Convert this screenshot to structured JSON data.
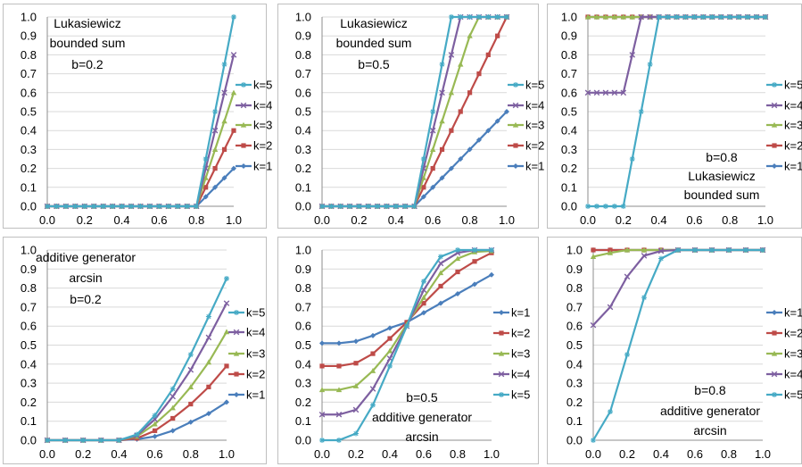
{
  "colors": {
    "k1": "#4a7ebb",
    "k2": "#be4b48",
    "k3": "#98b954",
    "k4": "#7d5fa0",
    "k5": "#46aac5"
  },
  "chart_data": [
    {
      "type": "line",
      "annotation": [
        "Lukasiewicz",
        "bounded sum",
        "b=0.2"
      ],
      "xlim": [
        0,
        1
      ],
      "ylim": [
        0,
        1
      ],
      "xticks": [
        "0.0",
        "0.2",
        "0.4",
        "0.6",
        "0.8",
        "1.0"
      ],
      "yticks": [
        "0.0",
        "0.1",
        "0.2",
        "0.3",
        "0.4",
        "0.5",
        "0.6",
        "0.7",
        "0.8",
        "0.9",
        "1.0"
      ],
      "x": [
        0,
        0.05,
        0.1,
        0.15,
        0.2,
        0.25,
        0.3,
        0.35,
        0.4,
        0.45,
        0.5,
        0.55,
        0.6,
        0.65,
        0.7,
        0.75,
        0.8,
        0.85,
        0.9,
        0.95,
        1.0
      ],
      "legend_order": [
        5,
        4,
        3,
        2,
        1
      ],
      "series": [
        {
          "name": "k=1",
          "key": "k1",
          "values": [
            0,
            0,
            0,
            0,
            0,
            0,
            0,
            0,
            0,
            0,
            0,
            0,
            0,
            0,
            0,
            0,
            0,
            0.05,
            0.1,
            0.15,
            0.2
          ]
        },
        {
          "name": "k=2",
          "key": "k2",
          "values": [
            0,
            0,
            0,
            0,
            0,
            0,
            0,
            0,
            0,
            0,
            0,
            0,
            0,
            0,
            0,
            0,
            0,
            0.1,
            0.2,
            0.3,
            0.4
          ]
        },
        {
          "name": "k=3",
          "key": "k3",
          "values": [
            0,
            0,
            0,
            0,
            0,
            0,
            0,
            0,
            0,
            0,
            0,
            0,
            0,
            0,
            0,
            0,
            0,
            0.15,
            0.3,
            0.45,
            0.6
          ]
        },
        {
          "name": "k=4",
          "key": "k4",
          "values": [
            0,
            0,
            0,
            0,
            0,
            0,
            0,
            0,
            0,
            0,
            0,
            0,
            0,
            0,
            0,
            0,
            0,
            0.2,
            0.4,
            0.6,
            0.8
          ]
        },
        {
          "name": "k=5",
          "key": "k5",
          "values": [
            0,
            0,
            0,
            0,
            0,
            0,
            0,
            0,
            0,
            0,
            0,
            0,
            0,
            0,
            0,
            0,
            0,
            0.25,
            0.5,
            0.75,
            1.0
          ]
        }
      ]
    },
    {
      "type": "line",
      "annotation": [
        "Lukasiewicz",
        "bounded sum",
        "b=0.5"
      ],
      "xlim": [
        0,
        1
      ],
      "ylim": [
        0,
        1
      ],
      "xticks": [
        "0.0",
        "0.2",
        "0.4",
        "0.6",
        "0.8",
        "1.0"
      ],
      "yticks": [
        "0.0",
        "0.1",
        "0.2",
        "0.3",
        "0.4",
        "0.5",
        "0.6",
        "0.7",
        "0.8",
        "0.9",
        "1.0"
      ],
      "x": [
        0,
        0.05,
        0.1,
        0.15,
        0.2,
        0.25,
        0.3,
        0.35,
        0.4,
        0.45,
        0.5,
        0.55,
        0.6,
        0.65,
        0.7,
        0.75,
        0.8,
        0.85,
        0.9,
        0.95,
        1.0
      ],
      "legend_order": [
        5,
        4,
        3,
        2,
        1
      ],
      "series": [
        {
          "name": "k=1",
          "key": "k1",
          "values": [
            0,
            0,
            0,
            0,
            0,
            0,
            0,
            0,
            0,
            0,
            0,
            0.05,
            0.1,
            0.15,
            0.2,
            0.25,
            0.3,
            0.35,
            0.4,
            0.45,
            0.5
          ]
        },
        {
          "name": "k=2",
          "key": "k2",
          "values": [
            0,
            0,
            0,
            0,
            0,
            0,
            0,
            0,
            0,
            0,
            0,
            0.1,
            0.2,
            0.3,
            0.4,
            0.5,
            0.6,
            0.7,
            0.8,
            0.9,
            1.0
          ]
        },
        {
          "name": "k=3",
          "key": "k3",
          "values": [
            0,
            0,
            0,
            0,
            0,
            0,
            0,
            0,
            0,
            0,
            0,
            0.15,
            0.3,
            0.45,
            0.6,
            0.75,
            0.9,
            1.0,
            1.0,
            1.0,
            1.0
          ]
        },
        {
          "name": "k=4",
          "key": "k4",
          "values": [
            0,
            0,
            0,
            0,
            0,
            0,
            0,
            0,
            0,
            0,
            0,
            0.2,
            0.4,
            0.6,
            0.8,
            1.0,
            1.0,
            1.0,
            1.0,
            1.0,
            1.0
          ]
        },
        {
          "name": "k=5",
          "key": "k5",
          "values": [
            0,
            0,
            0,
            0,
            0,
            0,
            0,
            0,
            0,
            0,
            0,
            0.25,
            0.5,
            0.75,
            1.0,
            1.0,
            1.0,
            1.0,
            1.0,
            1.0,
            1.0
          ]
        }
      ]
    },
    {
      "type": "line",
      "annotation": [
        "b=0.8",
        "Lukasiewicz",
        "bounded sum"
      ],
      "xlim": [
        0,
        1
      ],
      "ylim": [
        0,
        1
      ],
      "xticks": [
        "0.0",
        "0.2",
        "0.4",
        "0.6",
        "0.8",
        "1.0"
      ],
      "yticks": [
        "0.0",
        "0.1",
        "0.2",
        "0.3",
        "0.4",
        "0.5",
        "0.6",
        "0.7",
        "0.8",
        "0.9",
        "1.0"
      ],
      "x": [
        0,
        0.05,
        0.1,
        0.15,
        0.2,
        0.25,
        0.3,
        0.35,
        0.4,
        0.45,
        0.5,
        0.55,
        0.6,
        0.65,
        0.7,
        0.75,
        0.8,
        0.85,
        0.9,
        0.95,
        1.0
      ],
      "legend_order": [
        5,
        4,
        3,
        2,
        1
      ],
      "series": [
        {
          "name": "k=1",
          "key": "k1",
          "values": [
            1,
            1,
            1,
            1,
            1,
            1,
            1,
            1,
            1,
            1,
            1,
            1,
            1,
            1,
            1,
            1,
            1,
            1,
            1,
            1,
            1
          ]
        },
        {
          "name": "k=2",
          "key": "k2",
          "values": [
            1,
            1,
            1,
            1,
            1,
            1,
            1,
            1,
            1,
            1,
            1,
            1,
            1,
            1,
            1,
            1,
            1,
            1,
            1,
            1,
            1
          ]
        },
        {
          "name": "k=3",
          "key": "k3",
          "values": [
            1,
            1,
            1,
            1,
            1,
            1,
            1,
            1,
            1,
            1,
            1,
            1,
            1,
            1,
            1,
            1,
            1,
            1,
            1,
            1,
            1
          ]
        },
        {
          "name": "k=4",
          "key": "k4",
          "values": [
            0.6,
            0.6,
            0.6,
            0.6,
            0.6,
            0.8,
            1,
            1,
            1,
            1,
            1,
            1,
            1,
            1,
            1,
            1,
            1,
            1,
            1,
            1,
            1
          ]
        },
        {
          "name": "k=5",
          "key": "k5",
          "values": [
            0,
            0,
            0,
            0,
            0,
            0.25,
            0.5,
            0.75,
            1,
            1,
            1,
            1,
            1,
            1,
            1,
            1,
            1,
            1,
            1,
            1,
            1
          ]
        }
      ]
    },
    {
      "type": "line",
      "annotation": [
        "additive generator",
        "arcsin",
        "b=0.2"
      ],
      "xlim": [
        0,
        1
      ],
      "ylim": [
        0,
        1
      ],
      "xticks": [
        "0.0",
        "0.2",
        "0.4",
        "0.6",
        "0.8",
        "1.0"
      ],
      "yticks": [
        "0.0",
        "0.1",
        "0.2",
        "0.3",
        "0.4",
        "0.5",
        "0.6",
        "0.7",
        "0.8",
        "0.9",
        "1.0"
      ],
      "x": [
        0,
        0.1,
        0.2,
        0.3,
        0.4,
        0.5,
        0.6,
        0.7,
        0.8,
        0.9,
        1.0
      ],
      "legend_order": [
        5,
        4,
        3,
        2,
        1
      ],
      "series": [
        {
          "name": "k=1",
          "key": "k1",
          "values": [
            0,
            0,
            0,
            0,
            0,
            0.005,
            0.02,
            0.05,
            0.095,
            0.14,
            0.2
          ]
        },
        {
          "name": "k=2",
          "key": "k2",
          "values": [
            0,
            0,
            0,
            0,
            0,
            0.01,
            0.05,
            0.115,
            0.19,
            0.28,
            0.39
          ]
        },
        {
          "name": "k=3",
          "key": "k3",
          "values": [
            0,
            0,
            0,
            0,
            0,
            0.02,
            0.085,
            0.17,
            0.28,
            0.41,
            0.57
          ]
        },
        {
          "name": "k=4",
          "key": "k4",
          "values": [
            0,
            0,
            0,
            0,
            0,
            0.025,
            0.11,
            0.23,
            0.37,
            0.54,
            0.72
          ]
        },
        {
          "name": "k=5",
          "key": "k5",
          "values": [
            0,
            0,
            0,
            0,
            0,
            0.03,
            0.13,
            0.27,
            0.45,
            0.65,
            0.85
          ]
        }
      ]
    },
    {
      "type": "line",
      "annotation": [
        "b=0.5",
        "additive generator",
        "arcsin"
      ],
      "xlim": [
        0,
        1
      ],
      "ylim": [
        0,
        1
      ],
      "xticks": [
        "0.0",
        "0.2",
        "0.4",
        "0.6",
        "0.8",
        "1.0"
      ],
      "yticks": [
        "0.0",
        "0.1",
        "0.2",
        "0.3",
        "0.4",
        "0.5",
        "0.6",
        "0.7",
        "0.8",
        "0.9",
        "1.0"
      ],
      "x": [
        0,
        0.1,
        0.2,
        0.3,
        0.4,
        0.5,
        0.6,
        0.7,
        0.8,
        0.9,
        1.0
      ],
      "legend_order": [
        1,
        2,
        3,
        4,
        5
      ],
      "series": [
        {
          "name": "k=1",
          "key": "k1",
          "values": [
            0.51,
            0.51,
            0.52,
            0.55,
            0.59,
            0.62,
            0.67,
            0.72,
            0.77,
            0.82,
            0.87
          ]
        },
        {
          "name": "k=2",
          "key": "k2",
          "values": [
            0.39,
            0.39,
            0.405,
            0.455,
            0.535,
            0.62,
            0.72,
            0.81,
            0.885,
            0.94,
            0.985
          ]
        },
        {
          "name": "k=3",
          "key": "k3",
          "values": [
            0.265,
            0.265,
            0.285,
            0.365,
            0.47,
            0.61,
            0.75,
            0.88,
            0.955,
            0.99,
            0.995
          ]
        },
        {
          "name": "k=4",
          "key": "k4",
          "values": [
            0.135,
            0.135,
            0.16,
            0.27,
            0.43,
            0.6,
            0.79,
            0.93,
            0.985,
            1.0,
            1.0
          ]
        },
        {
          "name": "k=5",
          "key": "k5",
          "values": [
            0,
            0,
            0.035,
            0.185,
            0.39,
            0.6,
            0.835,
            0.965,
            1.0,
            1.0,
            1.0
          ]
        }
      ]
    },
    {
      "type": "line",
      "annotation": [
        "b=0.8",
        "additive generator",
        "arcsin"
      ],
      "xlim": [
        0,
        1
      ],
      "ylim": [
        0,
        1
      ],
      "xticks": [
        "0.0",
        "0.2",
        "0.4",
        "0.6",
        "0.8",
        "1.0"
      ],
      "yticks": [
        "0.0",
        "0.1",
        "0.2",
        "0.3",
        "0.4",
        "0.5",
        "0.6",
        "0.7",
        "0.8",
        "0.9",
        "1.0"
      ],
      "x": [
        0,
        0.1,
        0.2,
        0.3,
        0.4,
        0.5,
        0.6,
        0.7,
        0.8,
        0.9,
        1.0
      ],
      "legend_order": [
        1,
        2,
        3,
        4,
        5
      ],
      "series": [
        {
          "name": "k=1",
          "key": "k1",
          "values": [
            1,
            1,
            1,
            1,
            1,
            1,
            1,
            1,
            1,
            1,
            1
          ]
        },
        {
          "name": "k=2",
          "key": "k2",
          "values": [
            1,
            1,
            1,
            1,
            1,
            1,
            1,
            1,
            1,
            1,
            1
          ]
        },
        {
          "name": "k=3",
          "key": "k3",
          "values": [
            0.965,
            0.985,
            1,
            1,
            1,
            1,
            1,
            1,
            1,
            1,
            1
          ]
        },
        {
          "name": "k=4",
          "key": "k4",
          "values": [
            0.605,
            0.7,
            0.86,
            0.97,
            0.995,
            1,
            1,
            1,
            1,
            1,
            1
          ]
        },
        {
          "name": "k=5",
          "key": "k5",
          "values": [
            0,
            0.15,
            0.45,
            0.75,
            0.955,
            1,
            1,
            1,
            1,
            1,
            1
          ]
        }
      ]
    }
  ]
}
